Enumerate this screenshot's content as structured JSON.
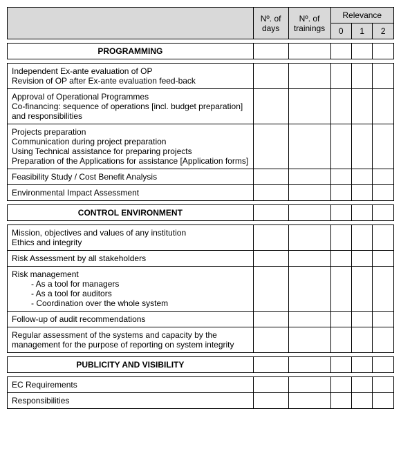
{
  "header": {
    "col_days": "Nº. of days",
    "col_trainings": "Nº. of trainings",
    "col_relevance": "Relevance",
    "rel0": "0",
    "rel1": "1",
    "rel2": "2"
  },
  "sections": [
    {
      "title": "PROGRAMMING",
      "rows": [
        {
          "lines": [
            "Independent Ex-ante evaluation of  OP",
            "Revision of OP after Ex-ante evaluation feed-back"
          ]
        },
        {
          "lines": [
            "Approval of Operational Programmes",
            "Co-financing: sequence of operations [incl. budget preparation] and responsibilities"
          ]
        },
        {
          "lines": [
            "Projects preparation",
            "Communication during project preparation",
            "Using Technical assistance for preparing projects",
            "Preparation of the Applications for assistance [Application forms]"
          ]
        },
        {
          "lines": [
            "Feasibility Study / Cost Benefit Analysis"
          ]
        },
        {
          "lines": [
            "Environmental Impact Assessment"
          ]
        }
      ]
    },
    {
      "title": "CONTROL ENVIRONMENT",
      "rows": [
        {
          "lines": [
            "Mission, objectives and values of any institution",
            "Ethics and integrity"
          ]
        },
        {
          "lines": [
            "Risk Assessment by all stakeholders"
          ]
        },
        {
          "lines": [
            "Risk management"
          ],
          "bullets": [
            "As a tool for managers",
            "As a tool for auditors",
            "Coordination over the whole system"
          ]
        },
        {
          "lines": [
            "Follow-up of audit recommendations"
          ]
        },
        {
          "lines": [
            "Regular assessment of the systems and capacity by the management for the purpose of reporting on system integrity"
          ]
        }
      ]
    },
    {
      "title": "PUBLICITY AND VISIBILITY",
      "rows": [
        {
          "lines": [
            "EC Requirements"
          ]
        },
        {
          "lines": [
            "Responsibilities"
          ]
        }
      ]
    }
  ]
}
